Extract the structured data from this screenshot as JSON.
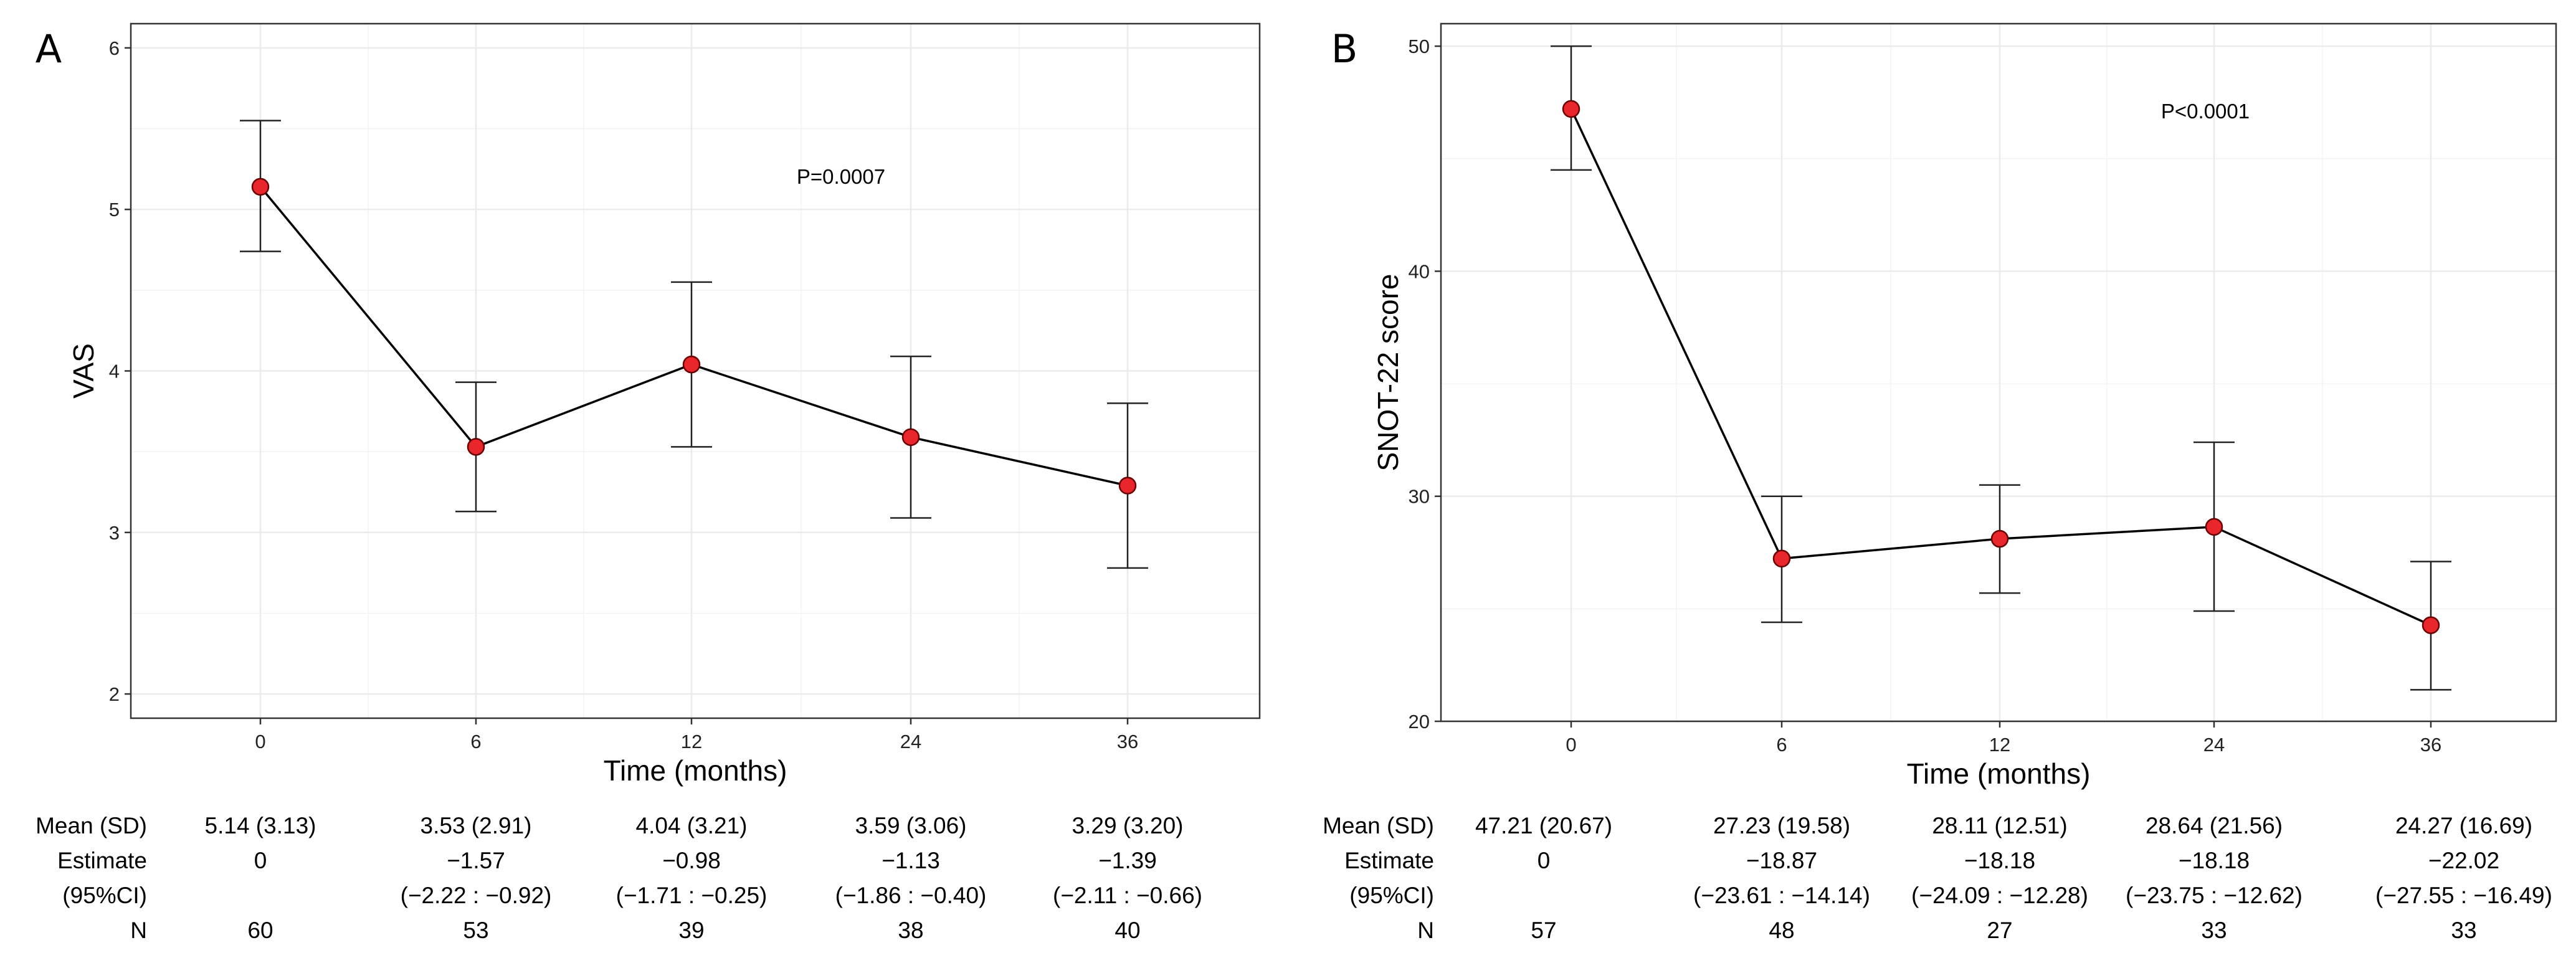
{
  "chart_data": [
    {
      "type": "line",
      "panel_label": "A",
      "x": [
        "0",
        "6",
        "12",
        "24",
        "36"
      ],
      "series": [
        {
          "values": [
            5.14,
            3.53,
            4.04,
            3.59,
            3.29
          ],
          "ci_low": [
            4.74,
            3.13,
            3.53,
            3.09,
            2.78
          ],
          "ci_high": [
            5.55,
            3.93,
            4.55,
            4.09,
            3.8
          ]
        }
      ],
      "xlabel": "Time (months)",
      "ylabel": "VAS",
      "ylim": [
        1.85,
        6.15
      ],
      "yticks": [
        2,
        3,
        4,
        5,
        6
      ],
      "grid": true,
      "annotation": "P=0.0007",
      "table": {
        "row_labels": [
          "Mean (SD)",
          "Estimate",
          "(95%CI)",
          "N"
        ],
        "mean_sd": [
          "5.14 (3.13)",
          "3.53 (2.91)",
          "4.04 (3.21)",
          "3.59 (3.06)",
          "3.29 (3.20)"
        ],
        "estimate": [
          "0",
          "−1.57",
          "−0.98",
          "−1.13",
          "−1.39"
        ],
        "ci": [
          "",
          "(−2.22 : −0.92)",
          "(−1.71 : −0.25)",
          "(−1.86 : −0.40)",
          "(−2.11 : −0.66)"
        ],
        "n": [
          "60",
          "53",
          "39",
          "38",
          "40"
        ]
      }
    },
    {
      "type": "line",
      "panel_label": "B",
      "x": [
        "0",
        "6",
        "12",
        "24",
        "36"
      ],
      "series": [
        {
          "values": [
            47.21,
            27.23,
            28.11,
            28.64,
            24.27
          ],
          "ci_low": [
            44.5,
            24.4,
            25.7,
            24.9,
            21.4
          ],
          "ci_high": [
            50.0,
            30.0,
            30.5,
            32.4,
            27.1
          ]
        }
      ],
      "xlabel": "Time (months)",
      "ylabel": "SNOT-22 score",
      "ylim": [
        20,
        51
      ],
      "yticks": [
        20,
        30,
        40,
        50
      ],
      "grid": true,
      "annotation": "P<0.0001",
      "table": {
        "row_labels": [
          "Mean (SD)",
          "Estimate",
          "(95%CI)",
          "N"
        ],
        "mean_sd": [
          "47.21 (20.67)",
          "27.23 (19.58)",
          "28.11 (12.51)",
          "28.64 (21.56)",
          "24.27 (16.69)"
        ],
        "estimate": [
          "0",
          "−18.87",
          "−18.18",
          "−18.18",
          "−22.02"
        ],
        "ci": [
          "",
          "(−23.61 : −14.14)",
          "(−24.09 : −12.28)",
          "(−23.75 : −12.62)",
          "(−27.55 : −16.49)"
        ],
        "n": [
          "57",
          "48",
          "27",
          "33",
          "33"
        ]
      }
    }
  ],
  "colors": {
    "point_fill": "#e8262b",
    "point_stroke": "#6b0000",
    "line": "#000000",
    "grid": "#ebebeb",
    "panel_border": "#333333"
  }
}
